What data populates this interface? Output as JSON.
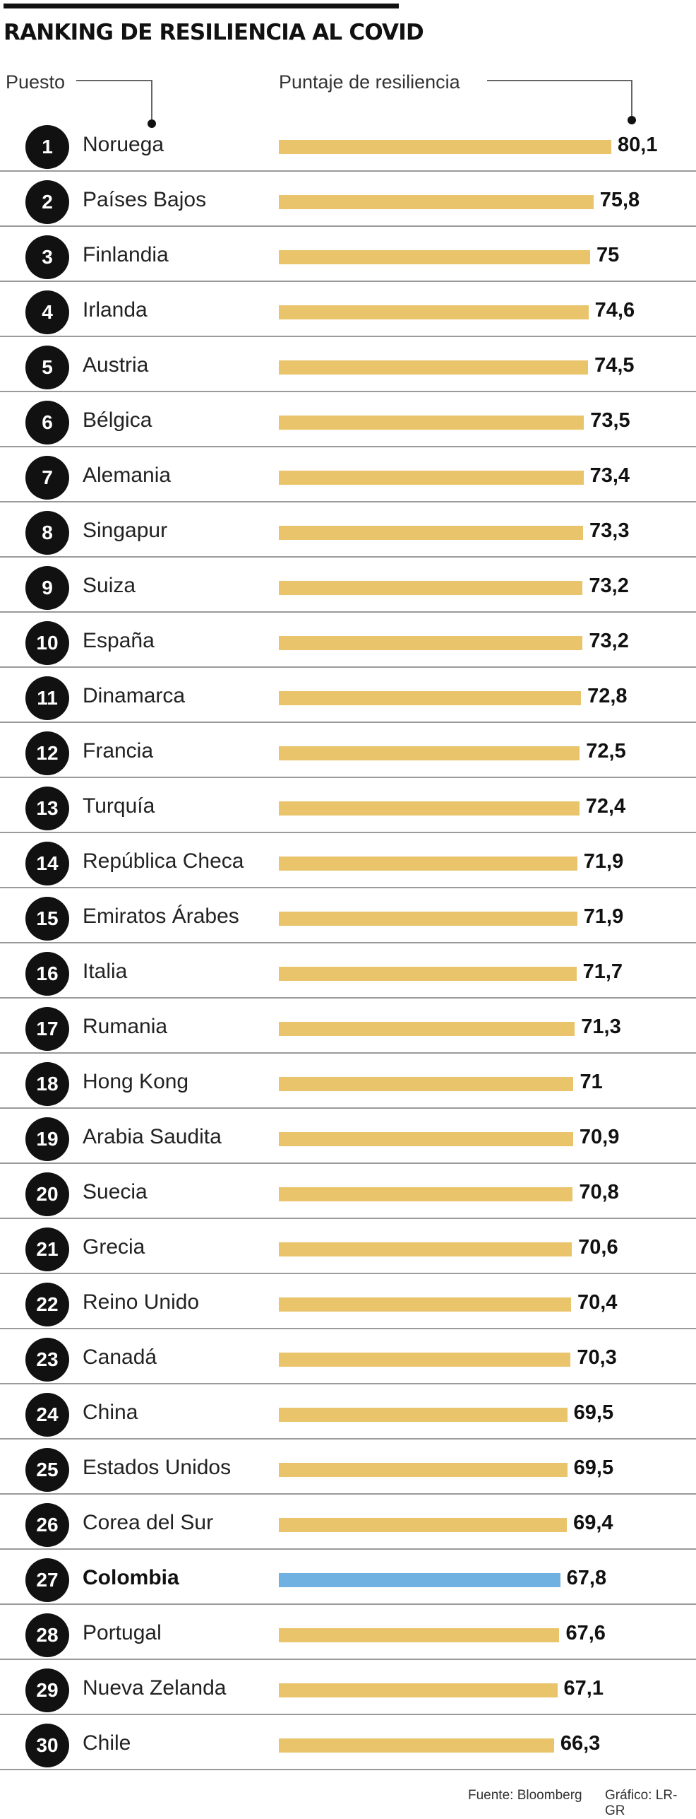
{
  "title": "RANKING DE RESILIENCIA AL COVID",
  "headers": {
    "rank": "Puesto",
    "score": "Puntaje de resiliencia"
  },
  "colors": {
    "bar": "#e9c46a",
    "highlight_bar": "#6fb1e0",
    "rank_circle": "#111111"
  },
  "chart_data": {
    "type": "bar",
    "orientation": "horizontal",
    "highlight": "Colombia",
    "rows": [
      {
        "rank": "1",
        "country": "Noruega",
        "label": "80,1",
        "value": 80.1
      },
      {
        "rank": "2",
        "country": "Países Bajos",
        "label": "75,8",
        "value": 75.8
      },
      {
        "rank": "3",
        "country": "Finlandia",
        "label": "75",
        "value": 75.0
      },
      {
        "rank": "4",
        "country": "Irlanda",
        "label": "74,6",
        "value": 74.6
      },
      {
        "rank": "5",
        "country": "Austria",
        "label": "74,5",
        "value": 74.5
      },
      {
        "rank": "6",
        "country": "Bélgica",
        "label": "73,5",
        "value": 73.5
      },
      {
        "rank": "7",
        "country": "Alemania",
        "label": "73,4",
        "value": 73.4
      },
      {
        "rank": "8",
        "country": "Singapur",
        "label": "73,3",
        "value": 73.3
      },
      {
        "rank": "9",
        "country": "Suiza",
        "label": "73,2",
        "value": 73.2
      },
      {
        "rank": "10",
        "country": "España",
        "label": "73,2",
        "value": 73.2
      },
      {
        "rank": "11",
        "country": "Dinamarca",
        "label": "72,8",
        "value": 72.8
      },
      {
        "rank": "12",
        "country": "Francia",
        "label": "72,5",
        "value": 72.5
      },
      {
        "rank": "13",
        "country": "Turquía",
        "label": "72,4",
        "value": 72.4
      },
      {
        "rank": "14",
        "country": "República Checa",
        "label": "71,9",
        "value": 71.9
      },
      {
        "rank": "15",
        "country": "Emiratos Árabes",
        "label": "71,9",
        "value": 71.9
      },
      {
        "rank": "16",
        "country": "Italia",
        "label": "71,7",
        "value": 71.7
      },
      {
        "rank": "17",
        "country": "Rumania",
        "label": "71,3",
        "value": 71.3
      },
      {
        "rank": "18",
        "country": "Hong Kong",
        "label": "71",
        "value": 71.0
      },
      {
        "rank": "19",
        "country": "Arabia Saudita",
        "label": "70,9",
        "value": 70.9
      },
      {
        "rank": "20",
        "country": "Suecia",
        "label": "70,8",
        "value": 70.8
      },
      {
        "rank": "21",
        "country": "Grecia",
        "label": "70,6",
        "value": 70.6
      },
      {
        "rank": "22",
        "country": "Reino Unido",
        "label": "70,4",
        "value": 70.4
      },
      {
        "rank": "23",
        "country": "Canadá",
        "label": "70,3",
        "value": 70.3
      },
      {
        "rank": "24",
        "country": "China",
        "label": "69,5",
        "value": 69.5
      },
      {
        "rank": "25",
        "country": "Estados Unidos",
        "label": "69,5",
        "value": 69.5
      },
      {
        "rank": "26",
        "country": "Corea del Sur",
        "label": "69,4",
        "value": 69.4
      },
      {
        "rank": "27",
        "country": "Colombia",
        "label": "67,8",
        "value": 67.8
      },
      {
        "rank": "28",
        "country": "Portugal",
        "label": "67,6",
        "value": 67.6
      },
      {
        "rank": "29",
        "country": "Nueva Zelanda",
        "label": "67,1",
        "value": 67.1
      },
      {
        "rank": "30",
        "country": "Chile",
        "label": "66,3",
        "value": 66.3
      }
    ]
  },
  "footer": {
    "source": "Fuente: Bloomberg",
    "credit": "Gráfico: LR-GR"
  }
}
